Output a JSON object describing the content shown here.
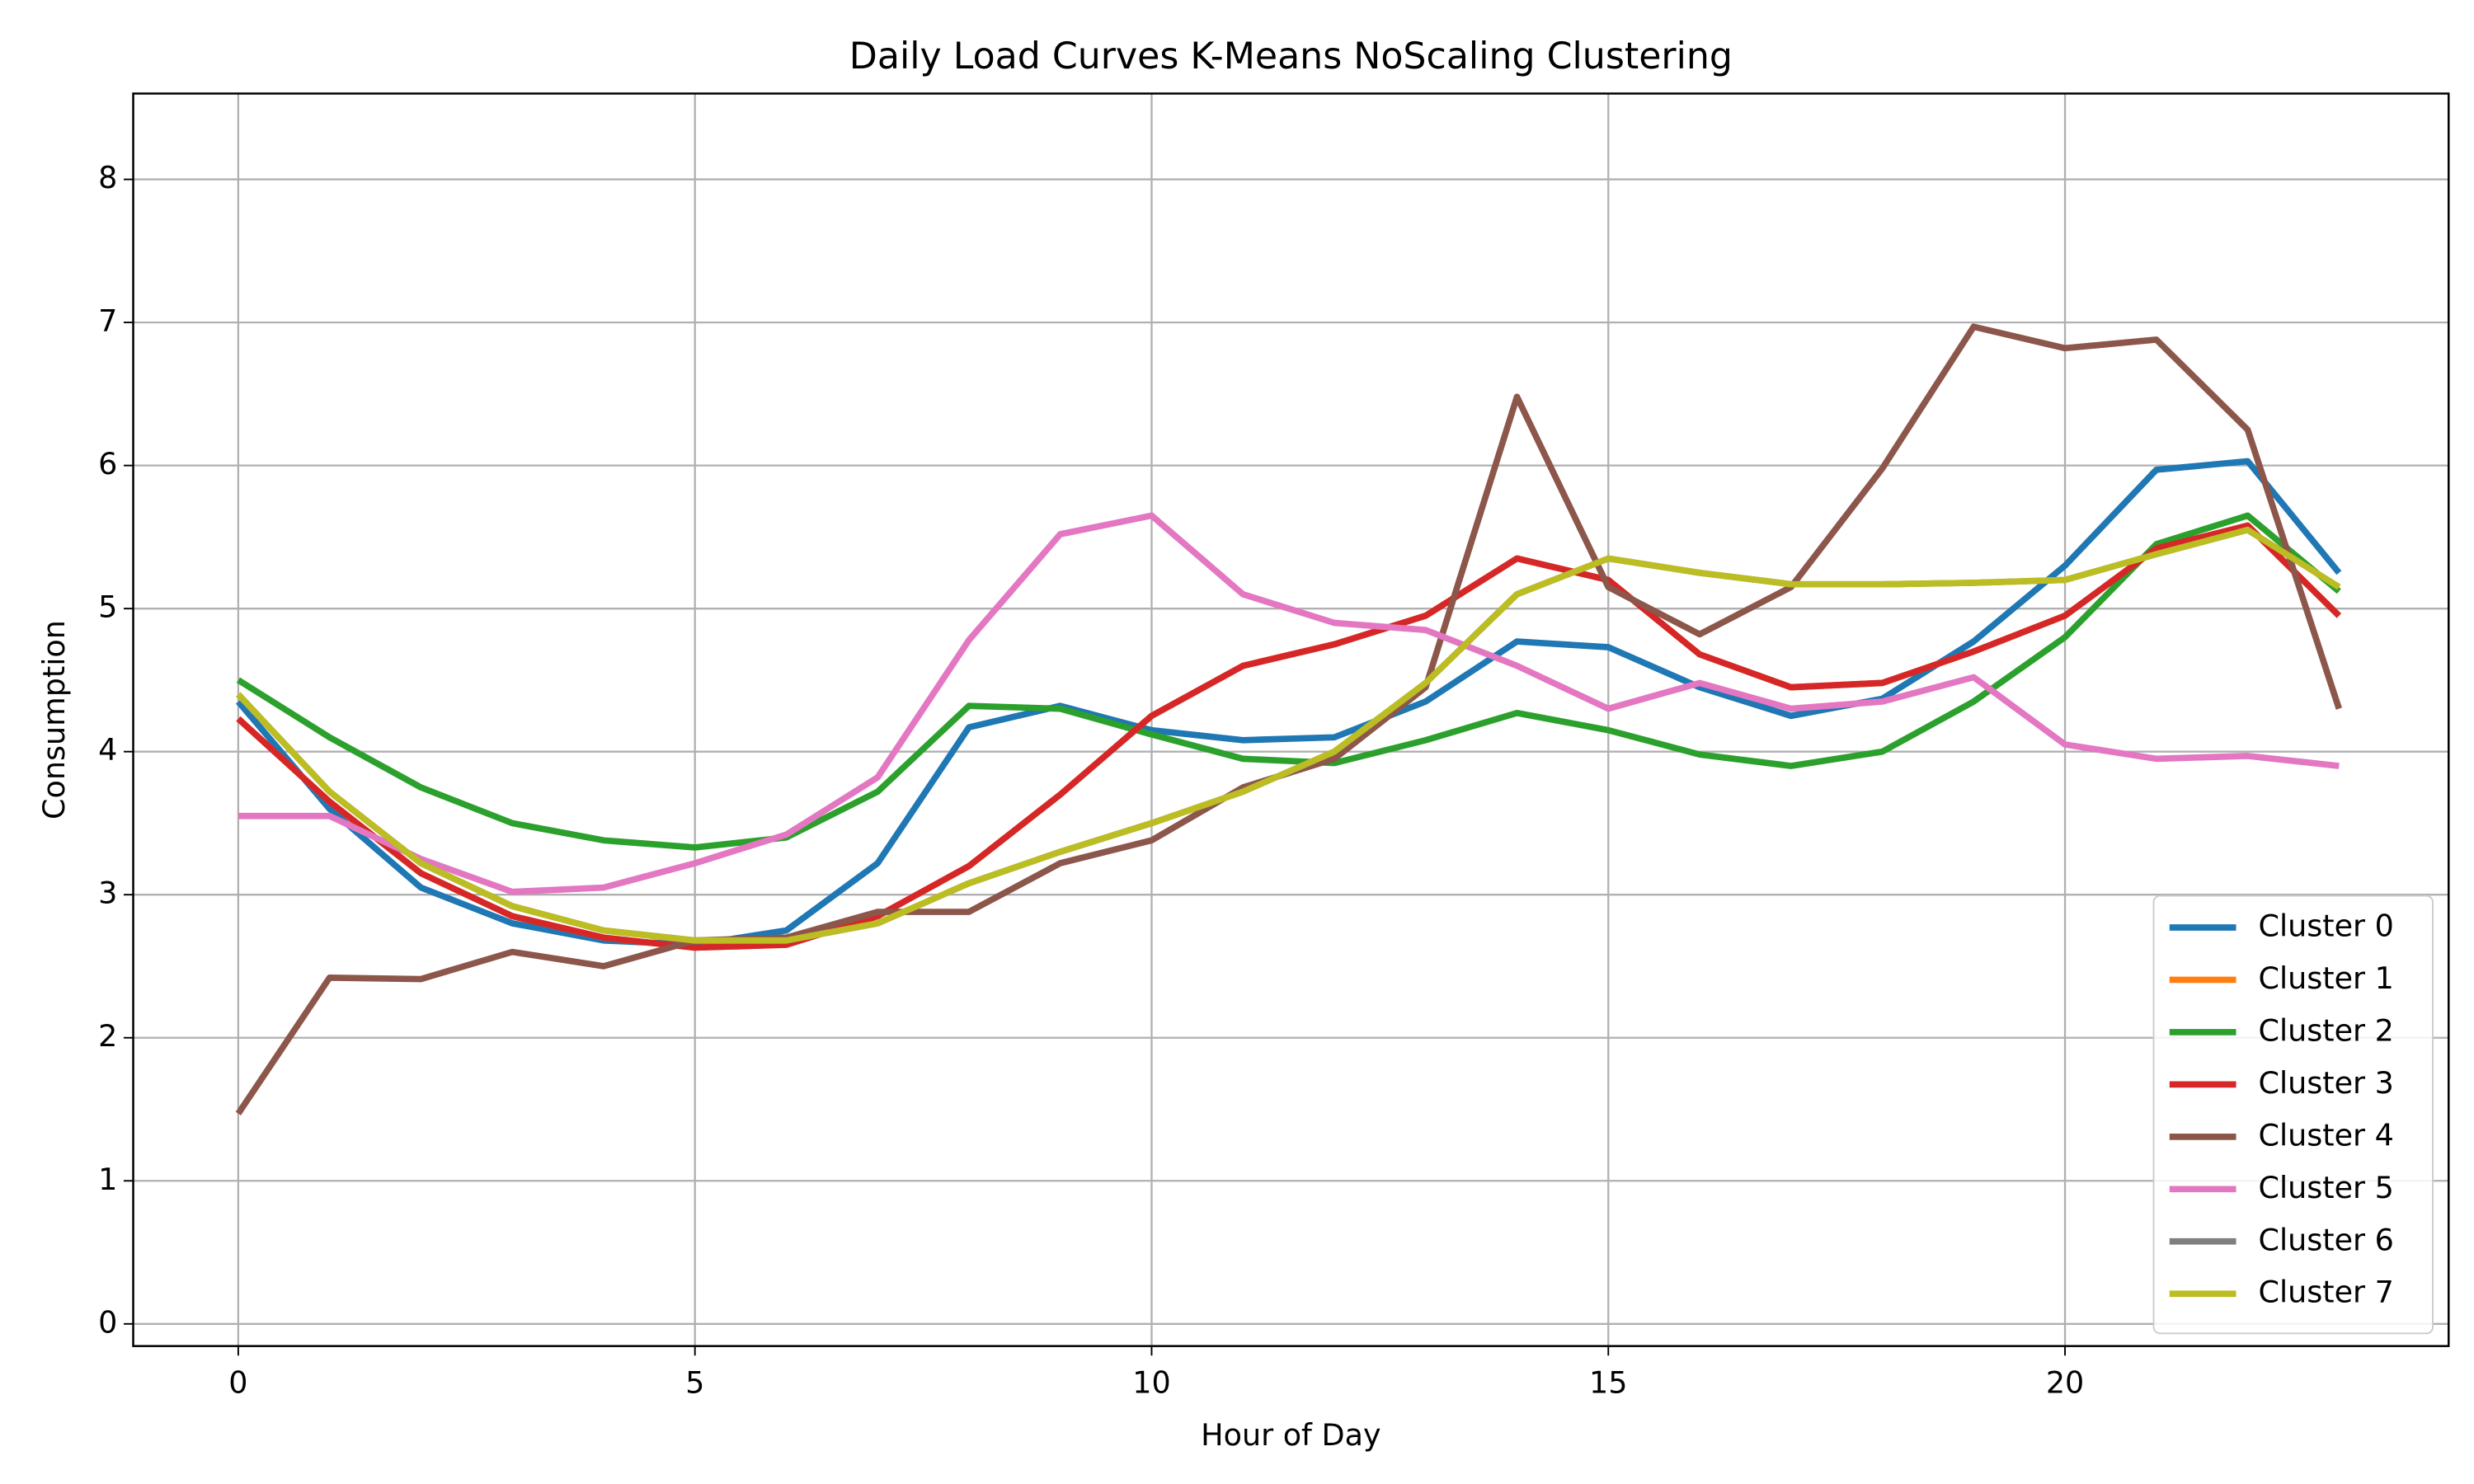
{
  "chart_data": {
    "type": "line",
    "title": "Daily Load Curves K-Means NoScaling Clustering",
    "xlabel": "Hour of Day",
    "ylabel": "Consumption",
    "x": [
      0,
      1,
      2,
      3,
      4,
      5,
      6,
      7,
      8,
      9,
      10,
      11,
      12,
      13,
      14,
      15,
      16,
      17,
      18,
      19,
      20,
      21,
      22,
      23
    ],
    "series": [
      {
        "name": "Cluster 0",
        "color": "#1f77b4",
        "values": [
          4.35,
          3.6,
          3.05,
          2.8,
          2.68,
          2.65,
          2.75,
          3.22,
          4.17,
          4.32,
          4.15,
          4.08,
          4.1,
          4.35,
          4.77,
          4.73,
          4.45,
          4.25,
          4.37,
          4.77,
          5.3,
          5.97,
          6.03,
          5.25
        ]
      },
      {
        "name": "Cluster 1",
        "color": "#ff7f0e",
        "values": [
          4.23,
          3.65,
          3.15,
          2.85,
          2.7,
          2.63,
          2.65,
          2.85,
          3.2,
          3.7,
          4.25,
          4.6,
          4.75,
          4.95,
          5.35,
          5.2,
          4.68,
          4.45,
          4.48,
          4.7,
          4.95,
          5.42,
          5.58,
          4.95
        ]
      },
      {
        "name": "Cluster 2",
        "color": "#2ca02c",
        "values": [
          4.5,
          4.1,
          3.75,
          3.5,
          3.38,
          3.33,
          3.4,
          3.72,
          4.32,
          4.3,
          4.12,
          3.95,
          3.92,
          4.08,
          4.27,
          4.15,
          3.98,
          3.9,
          4.0,
          4.35,
          4.8,
          5.45,
          5.65,
          5.12
        ]
      },
      {
        "name": "Cluster 3",
        "color": "#d62728",
        "values": [
          4.23,
          3.65,
          3.15,
          2.85,
          2.7,
          2.63,
          2.65,
          2.85,
          3.2,
          3.7,
          4.25,
          4.6,
          4.75,
          4.95,
          5.35,
          5.2,
          4.68,
          4.45,
          4.48,
          4.7,
          4.95,
          5.42,
          5.58,
          4.95
        ]
      },
      {
        "name": "Cluster 4",
        "color": "#8c564b",
        "values": [
          1.47,
          2.42,
          2.41,
          2.6,
          2.5,
          2.68,
          2.7,
          2.88,
          2.88,
          3.22,
          3.38,
          3.75,
          3.95,
          4.45,
          6.48,
          5.15,
          4.82,
          5.15,
          5.98,
          6.97,
          6.82,
          6.88,
          6.25,
          4.3
        ]
      },
      {
        "name": "Cluster 5",
        "color": "#e377c2",
        "values": [
          3.55,
          3.55,
          3.25,
          3.02,
          3.05,
          3.22,
          3.42,
          3.82,
          4.78,
          5.52,
          5.65,
          5.1,
          4.9,
          4.85,
          4.6,
          4.3,
          4.48,
          4.3,
          4.35,
          4.52,
          4.05,
          3.95,
          3.97,
          3.9
        ]
      },
      {
        "name": "Cluster 6",
        "color": "#7f7f7f",
        "values": [
          4.4,
          3.72,
          3.22,
          2.92,
          2.75,
          2.68,
          2.68,
          2.8,
          3.08,
          3.3,
          3.5,
          3.72,
          4.0,
          4.48,
          5.1,
          5.35,
          5.25,
          5.17,
          5.17,
          5.18,
          5.2,
          5.38,
          5.55,
          5.15
        ]
      },
      {
        "name": "Cluster 7",
        "color": "#bcbd22",
        "values": [
          4.4,
          3.72,
          3.22,
          2.92,
          2.75,
          2.68,
          2.68,
          2.8,
          3.08,
          3.3,
          3.5,
          3.72,
          4.0,
          4.48,
          5.1,
          5.35,
          5.25,
          5.17,
          5.17,
          5.18,
          5.2,
          5.38,
          5.55,
          5.15
        ]
      }
    ],
    "xlim": [
      -1.15,
      24.2
    ],
    "ylim": [
      -0.155,
      8.6
    ],
    "xticks": [
      0,
      5,
      10,
      15,
      20
    ],
    "yticks": [
      0,
      1,
      2,
      3,
      4,
      5,
      6,
      7,
      8
    ],
    "grid": true,
    "legend": "lower right"
  }
}
